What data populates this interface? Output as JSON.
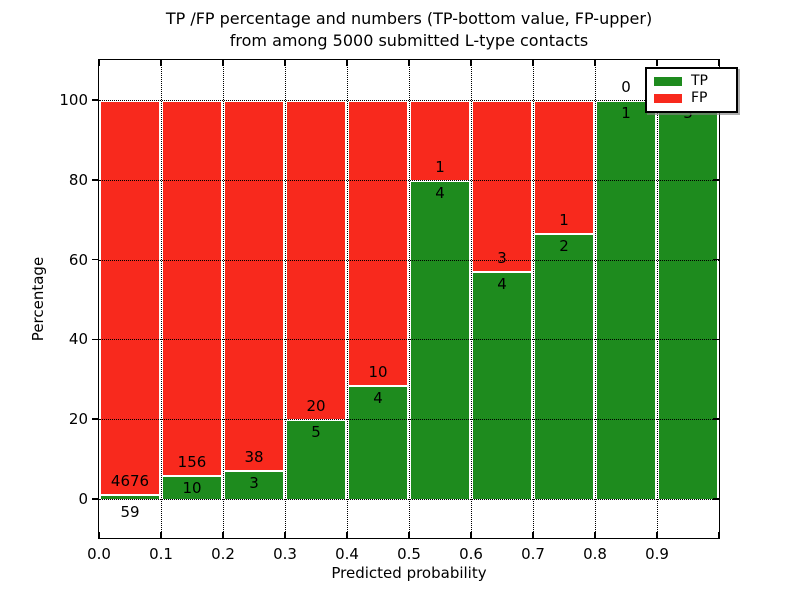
{
  "figure": {
    "title_line1": "TP /FP percentage and numbers (TP-bottom value, FP-upper)",
    "title_line2": "from among 5000 submitted L-type contacts",
    "xlabel": "Predicted probability",
    "ylabel": "Percentage"
  },
  "legend": {
    "items": [
      {
        "label": "TP",
        "color": "#1e8b1e"
      },
      {
        "label": "FP",
        "color": "#f8291d"
      }
    ]
  },
  "chart_data": {
    "type": "bar",
    "stacked": true,
    "title": "TP /FP percentage and numbers (TP-bottom value, FP-upper) from among 5000 submitted L-type contacts",
    "xlabel": "Predicted probability",
    "ylabel": "Percentage",
    "xlim": [
      0.0,
      1.0
    ],
    "ylim": [
      -10,
      110
    ],
    "grid": "dotted",
    "legend_position": "upper right",
    "total_contacts": 5000,
    "bin_edges": [
      0.0,
      0.1,
      0.2,
      0.3,
      0.4,
      0.5,
      0.6,
      0.7,
      0.8,
      0.9,
      1.0
    ],
    "categories": [
      "0.0-0.1",
      "0.1-0.2",
      "0.2-0.3",
      "0.3-0.4",
      "0.4-0.5",
      "0.5-0.6",
      "0.6-0.7",
      "0.7-0.8",
      "0.8-0.9",
      "0.9-1.0"
    ],
    "x_tick_labels": [
      "0.0",
      "0.1",
      "0.2",
      "0.3",
      "0.4",
      "0.5",
      "0.6",
      "0.7",
      "0.8",
      "0.9"
    ],
    "y_tick_values": [
      0,
      20,
      40,
      60,
      80,
      100
    ],
    "y_tick_labels": [
      "0",
      "20",
      "40",
      "60",
      "80",
      "100"
    ],
    "series": [
      {
        "name": "TP",
        "color": "#1e8b1e",
        "counts": [
          59,
          10,
          3,
          5,
          4,
          4,
          4,
          2,
          1,
          3
        ],
        "percent": [
          1.25,
          6.02,
          7.32,
          20.0,
          28.57,
          80.0,
          57.14,
          66.67,
          100.0,
          100.0
        ]
      },
      {
        "name": "FP",
        "color": "#f8291d",
        "counts": [
          4676,
          156,
          38,
          20,
          10,
          1,
          3,
          1,
          0,
          0
        ],
        "percent": [
          98.75,
          93.98,
          92.68,
          80.0,
          71.43,
          20.0,
          42.86,
          33.33,
          0.0,
          0.0
        ]
      }
    ]
  }
}
